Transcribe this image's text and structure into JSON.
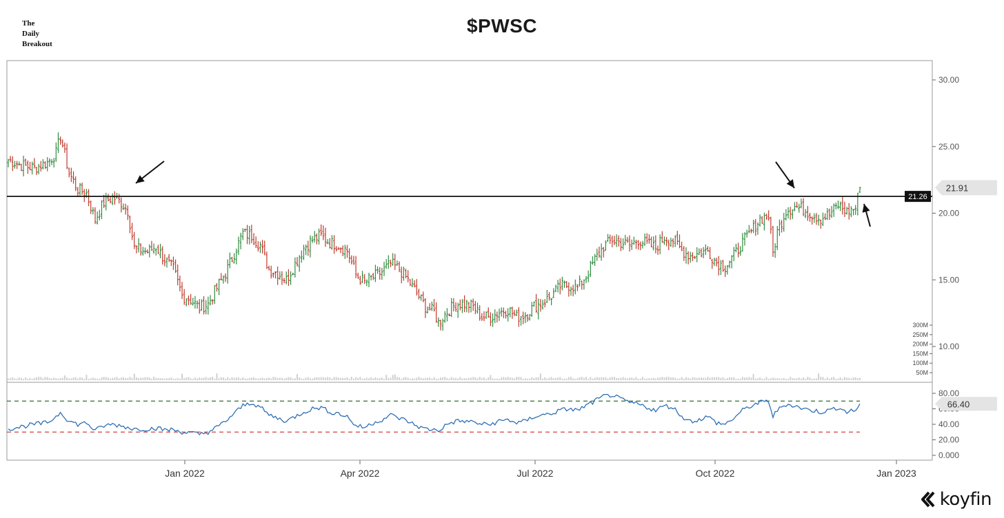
{
  "brand": {
    "line1": "The",
    "line2": "Daily",
    "line3": "Breakout"
  },
  "logo": {
    "text": "koyfin"
  },
  "chart_data": {
    "type": "ohlc",
    "title": "$PWSC",
    "x_ticks": [
      "Jan 2022",
      "Apr 2022",
      "Jul 2022",
      "Oct 2022",
      "Jan 2023"
    ],
    "price_axis": {
      "ticks": [
        "30.00",
        "25.00",
        "20.00",
        "15.00",
        "10.00"
      ],
      "ylim": [
        8.0,
        31.0
      ]
    },
    "volume_axis": {
      "ticks": [
        "300M",
        "250M",
        "200M",
        "150M",
        "100M",
        "50M"
      ]
    },
    "rsi_axis": {
      "ticks": [
        "80.00",
        "60.00",
        "40.00",
        "20.00",
        "0.000"
      ],
      "ylim": [
        0,
        90
      ],
      "overbought": 70,
      "oversold": 30
    },
    "horizontal_line": {
      "value": 21.26,
      "label": "21.26"
    },
    "last_price": {
      "value": 21.91,
      "label": "21.91"
    },
    "last_rsi": {
      "value": 66.4,
      "label": "66.40"
    },
    "price_keypoints": [
      [
        0,
        24.0
      ],
      [
        6,
        23.6
      ],
      [
        12,
        23.4
      ],
      [
        18,
        23.8
      ],
      [
        22,
        24.5
      ],
      [
        24,
        25.8
      ],
      [
        28,
        23.0
      ],
      [
        32,
        21.8
      ],
      [
        36,
        21.5
      ],
      [
        40,
        19.5
      ],
      [
        44,
        20.8
      ],
      [
        48,
        21.2
      ],
      [
        52,
        20.8
      ],
      [
        55,
        20.2
      ],
      [
        58,
        17.4
      ],
      [
        64,
        17.1
      ],
      [
        68,
        17.5
      ],
      [
        72,
        16.5
      ],
      [
        76,
        15.8
      ],
      [
        80,
        13.8
      ],
      [
        84,
        13.5
      ],
      [
        88,
        12.9
      ],
      [
        92,
        13.2
      ],
      [
        96,
        14.4
      ],
      [
        100,
        15.5
      ],
      [
        104,
        17.0
      ],
      [
        108,
        18.5
      ],
      [
        112,
        18.3
      ],
      [
        116,
        17.6
      ],
      [
        120,
        15.8
      ],
      [
        124,
        15.5
      ],
      [
        128,
        15.0
      ],
      [
        132,
        16.2
      ],
      [
        136,
        17.4
      ],
      [
        140,
        18.0
      ],
      [
        144,
        18.3
      ],
      [
        148,
        17.8
      ],
      [
        152,
        17.6
      ],
      [
        156,
        17.2
      ],
      [
        160,
        15.4
      ],
      [
        164,
        14.8
      ],
      [
        168,
        15.2
      ],
      [
        172,
        15.6
      ],
      [
        176,
        16.2
      ],
      [
        180,
        15.8
      ],
      [
        184,
        15.0
      ],
      [
        188,
        14.0
      ],
      [
        192,
        13.0
      ],
      [
        196,
        12.6
      ],
      [
        198,
        11.8
      ],
      [
        202,
        12.6
      ],
      [
        206,
        13.2
      ],
      [
        210,
        13.2
      ],
      [
        214,
        13.0
      ],
      [
        218,
        12.2
      ],
      [
        222,
        12.2
      ],
      [
        226,
        12.6
      ],
      [
        230,
        12.8
      ],
      [
        234,
        12.2
      ],
      [
        238,
        12.4
      ],
      [
        242,
        13.0
      ],
      [
        246,
        13.3
      ],
      [
        250,
        13.8
      ],
      [
        254,
        14.5
      ],
      [
        258,
        14.6
      ],
      [
        262,
        14.4
      ],
      [
        266,
        15.3
      ],
      [
        270,
        16.5
      ],
      [
        274,
        17.5
      ],
      [
        278,
        18.0
      ],
      [
        282,
        17.8
      ],
      [
        286,
        17.6
      ],
      [
        290,
        18.0
      ],
      [
        294,
        17.7
      ],
      [
        298,
        17.4
      ],
      [
        302,
        18.2
      ],
      [
        306,
        18.0
      ],
      [
        310,
        17.2
      ],
      [
        314,
        16.8
      ],
      [
        318,
        17.0
      ],
      [
        322,
        17.2
      ],
      [
        326,
        16.3
      ],
      [
        330,
        16.0
      ],
      [
        334,
        16.8
      ],
      [
        338,
        17.8
      ],
      [
        342,
        18.6
      ],
      [
        346,
        19.6
      ],
      [
        350,
        19.8
      ],
      [
        352,
        17.0
      ],
      [
        354,
        18.6
      ],
      [
        358,
        20.2
      ],
      [
        362,
        20.5
      ],
      [
        366,
        20.3
      ],
      [
        370,
        19.9
      ],
      [
        374,
        19.6
      ],
      [
        378,
        19.9
      ],
      [
        382,
        20.6
      ],
      [
        386,
        20.1
      ],
      [
        390,
        20.4
      ],
      [
        392,
        21.9
      ]
    ],
    "rsi_keypoints": [
      [
        0,
        34
      ],
      [
        6,
        37
      ],
      [
        12,
        40
      ],
      [
        18,
        42
      ],
      [
        22,
        50
      ],
      [
        24,
        56
      ],
      [
        28,
        44
      ],
      [
        32,
        40
      ],
      [
        36,
        42
      ],
      [
        40,
        32
      ],
      [
        44,
        38
      ],
      [
        48,
        40
      ],
      [
        52,
        38
      ],
      [
        55,
        36
      ],
      [
        58,
        34
      ],
      [
        64,
        34
      ],
      [
        68,
        35
      ],
      [
        72,
        33
      ],
      [
        76,
        33
      ],
      [
        80,
        30
      ],
      [
        84,
        29
      ],
      [
        88,
        27
      ],
      [
        92,
        30
      ],
      [
        96,
        36
      ],
      [
        100,
        44
      ],
      [
        104,
        54
      ],
      [
        108,
        64
      ],
      [
        112,
        68
      ],
      [
        116,
        62
      ],
      [
        120,
        52
      ],
      [
        124,
        48
      ],
      [
        128,
        44
      ],
      [
        132,
        50
      ],
      [
        136,
        56
      ],
      [
        140,
        60
      ],
      [
        144,
        62
      ],
      [
        148,
        56
      ],
      [
        152,
        54
      ],
      [
        156,
        50
      ],
      [
        160,
        38
      ],
      [
        164,
        36
      ],
      [
        168,
        42
      ],
      [
        172,
        46
      ],
      [
        176,
        52
      ],
      [
        180,
        48
      ],
      [
        184,
        44
      ],
      [
        188,
        38
      ],
      [
        192,
        34
      ],
      [
        196,
        33
      ],
      [
        198,
        32
      ],
      [
        202,
        40
      ],
      [
        206,
        44
      ],
      [
        210,
        44
      ],
      [
        214,
        43
      ],
      [
        218,
        40
      ],
      [
        222,
        40
      ],
      [
        226,
        44
      ],
      [
        230,
        46
      ],
      [
        234,
        42
      ],
      [
        238,
        44
      ],
      [
        242,
        50
      ],
      [
        246,
        52
      ],
      [
        250,
        54
      ],
      [
        254,
        58
      ],
      [
        258,
        60
      ],
      [
        262,
        58
      ],
      [
        266,
        64
      ],
      [
        270,
        70
      ],
      [
        274,
        76
      ],
      [
        278,
        78
      ],
      [
        282,
        72
      ],
      [
        286,
        68
      ],
      [
        290,
        66
      ],
      [
        294,
        62
      ],
      [
        298,
        58
      ],
      [
        302,
        64
      ],
      [
        306,
        62
      ],
      [
        310,
        50
      ],
      [
        314,
        44
      ],
      [
        318,
        46
      ],
      [
        322,
        50
      ],
      [
        326,
        42
      ],
      [
        330,
        40
      ],
      [
        334,
        48
      ],
      [
        338,
        58
      ],
      [
        342,
        64
      ],
      [
        346,
        68
      ],
      [
        350,
        70
      ],
      [
        352,
        50
      ],
      [
        354,
        58
      ],
      [
        358,
        66
      ],
      [
        362,
        64
      ],
      [
        366,
        60
      ],
      [
        370,
        58
      ],
      [
        374,
        56
      ],
      [
        378,
        58
      ],
      [
        382,
        62
      ],
      [
        386,
        56
      ],
      [
        390,
        58
      ],
      [
        392,
        66.4
      ]
    ],
    "colors": {
      "up": "#2e8b3e",
      "down": "#c0392b",
      "horizontal_line": "#111111",
      "rsi_line": "#2d6fb3",
      "overbought_line": "#2f6b2f",
      "oversold_line": "#d04040",
      "volume": "#d0d0d0",
      "frame": "#999999",
      "arrow": "#111111"
    }
  }
}
